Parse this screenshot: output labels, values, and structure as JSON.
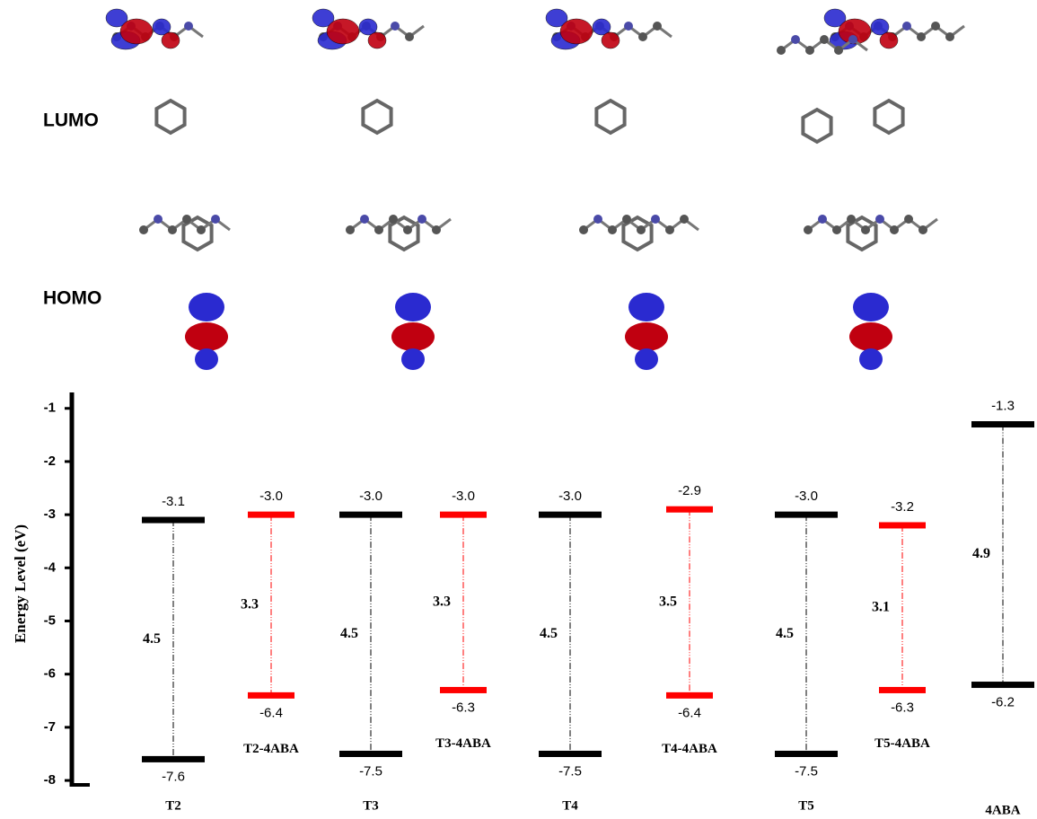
{
  "chart_data": {
    "type": "energy-level",
    "row_labels": [
      "LUMO",
      "HOMO"
    ],
    "ylabel": "Energy Level (eV)",
    "ylim": [
      -8.1,
      -0.7
    ],
    "yticks": [
      -1,
      -2,
      -3,
      -4,
      -5,
      -6,
      -7,
      -8
    ],
    "categories": [
      "T2",
      "T2-4ABA",
      "T3",
      "T3-4ABA",
      "T4",
      "T4-4ABA",
      "T5",
      "T5-4ABA",
      "4ABA"
    ],
    "colors": [
      "#000000",
      "#ff0000",
      "#000000",
      "#ff0000",
      "#000000",
      "#ff0000",
      "#000000",
      "#ff0000",
      "#000000"
    ],
    "lumo": [
      -3.1,
      -3.0,
      -3.0,
      -3.0,
      -3.0,
      -2.9,
      -3.0,
      -3.2,
      -1.3
    ],
    "lumo_labels": [
      "-3.1",
      "-3.0",
      "-3.0",
      "-3.0",
      "-3.0",
      "-2.9",
      "-3.0",
      "-3.2",
      "-1.3"
    ],
    "homo": [
      -7.6,
      -6.4,
      -7.5,
      -6.3,
      -7.5,
      -6.4,
      -7.5,
      -6.3,
      -6.2
    ],
    "homo_labels": [
      "-7.6",
      "-6.4",
      "-7.5",
      "-6.3",
      "-7.5",
      "-6.4",
      "-7.5",
      "-6.3",
      "-6.2"
    ],
    "gap": [
      4.5,
      3.3,
      4.5,
      3.3,
      4.5,
      3.5,
      4.5,
      3.1,
      4.9
    ]
  }
}
